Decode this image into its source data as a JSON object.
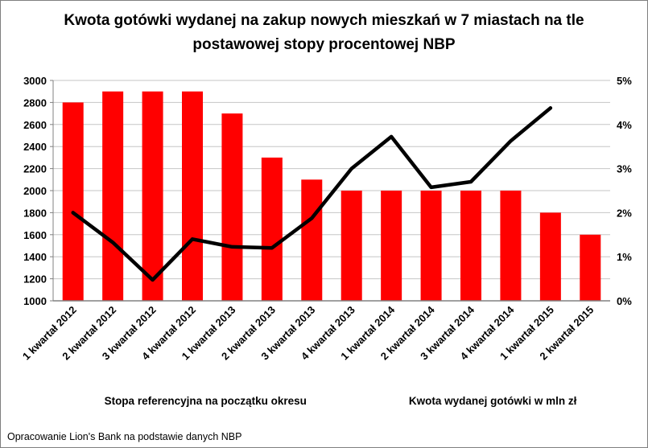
{
  "page": {
    "footer": "Opracowanie Lion's Bank na podstawie danych NBP"
  },
  "chart_data": {
    "type": "combo",
    "title": "Kwota gotówki wydanej na zakup nowych mieszkań w 7 miastach na tle postawowej stopy procentowej NBP",
    "title_lines": [
      "Kwota gotówki wydanej na zakup nowych mieszkań w 7 miastach na tle",
      "postawowej stopy procentowej NBP"
    ],
    "categories": [
      "1 kwartał 2012",
      "2 kwartał 2012",
      "3 kwartał 2012",
      "4 kwartał 2012",
      "1 kwartał 2013",
      "2 kwartał 2013",
      "3 kwartał 2013",
      "4 kwartał 2013",
      "1 kwartał 2014",
      "2 kwartał 2014",
      "3 kwartał 2014",
      "4 kwartał 2014",
      "1 kwartał 2015",
      "2 kwartał 2015"
    ],
    "series": [
      {
        "name": "Stopa referencyjna na początku okresu",
        "type": "bar",
        "axis": "right",
        "color": "#ff0000",
        "values": [
          4.5,
          4.75,
          4.75,
          4.75,
          4.25,
          3.25,
          2.75,
          2.5,
          2.5,
          2.5,
          2.5,
          2.5,
          2.0,
          1.5
        ]
      },
      {
        "name": "Kwota wydanej gotówki w mln zł",
        "type": "line",
        "axis": "left",
        "color": "#000000",
        "values": [
          1800,
          1530,
          1190,
          1560,
          1490,
          1480,
          1750,
          2200,
          2490,
          2030,
          2080,
          2450,
          2750,
          null
        ]
      }
    ],
    "left_axis": {
      "min": 1000,
      "max": 3000,
      "step": 200,
      "ticks": [
        1000,
        1200,
        1400,
        1600,
        1800,
        2000,
        2200,
        2400,
        2600,
        2800,
        3000
      ]
    },
    "right_axis": {
      "min": 0,
      "max": 5,
      "step": 1,
      "format": "percent",
      "ticks": [
        0,
        1,
        2,
        3,
        4,
        5
      ]
    },
    "grid": true,
    "legend_position": "bottom",
    "gridline_color": "#c6c6c6",
    "axis_line_color": "#808080"
  }
}
